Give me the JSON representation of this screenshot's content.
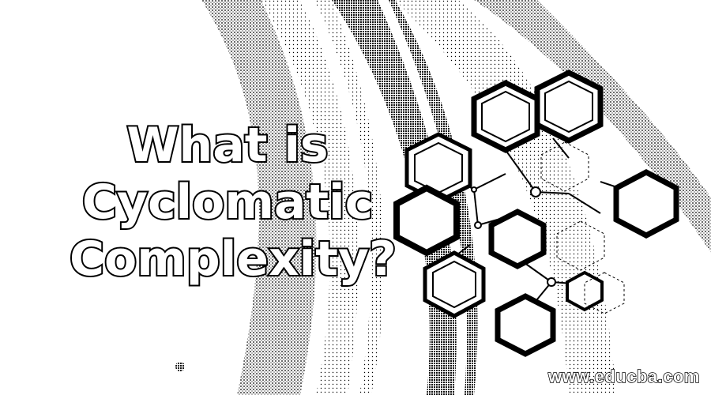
{
  "hero": {
    "title_line1": "What is",
    "title_line2": "Cyclomatic",
    "title_line3": "Complexity?"
  },
  "footer": {
    "watermark": "www.educba.com"
  },
  "illustration": {
    "subject": "hexagon-molecule-network",
    "ink_color": "#000000",
    "paper_color": "#ffffff",
    "shade_color": "#8c8c8c"
  }
}
